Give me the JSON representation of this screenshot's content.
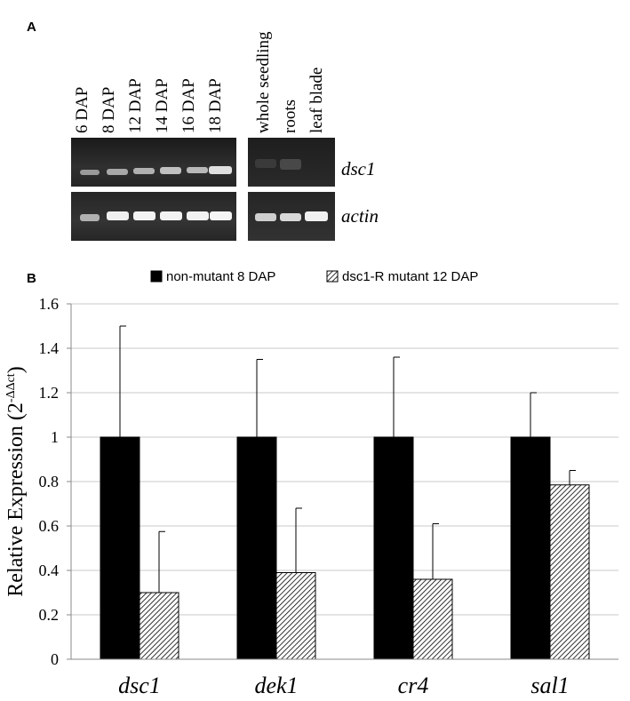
{
  "panel_a": {
    "label": "A",
    "lanes_left": [
      "6 DAP",
      "8 DAP",
      "12 DAP",
      "14 DAP",
      "16 DAP",
      "18 DAP"
    ],
    "lanes_right": [
      "whole seedling",
      "roots",
      "leaf blade"
    ],
    "genes": [
      "dsc1",
      "actin"
    ]
  },
  "panel_b": {
    "label": "B"
  },
  "chart_data": {
    "type": "bar",
    "title": "",
    "xlabel": "",
    "ylabel": "Relative Expression (2",
    "ylabel_sup": "-ΔΔct",
    "ylabel_close": ")",
    "categories": [
      "dsc1",
      "dek1",
      "cr4",
      "sal1"
    ],
    "series": [
      {
        "name": "non-mutant 8 DAP",
        "values": [
          1,
          1,
          1,
          1
        ],
        "errors": [
          0.5,
          0.35,
          0.36,
          0.2
        ],
        "color": "#000000",
        "pattern": "solid"
      },
      {
        "name": "dsc1-R mutant 12 DAP",
        "values": [
          0.3,
          0.39,
          0.36,
          0.785
        ],
        "errors": [
          0.275,
          0.29,
          0.25,
          0.065
        ],
        "color": "#ffffff",
        "pattern": "hatch"
      }
    ],
    "ylim": [
      0,
      1.6
    ],
    "yticks": [
      "0",
      "0.2",
      "0.4",
      "0.6",
      "0.8",
      "1",
      "1.2",
      "1.4",
      "1.6"
    ],
    "grid": true,
    "legend_position": "top"
  }
}
